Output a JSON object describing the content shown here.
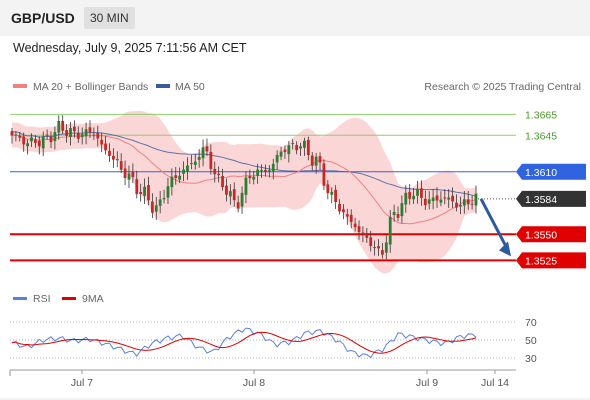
{
  "header": {
    "symbol": "GBP/USD",
    "timeframe": "30 MIN",
    "datetime": "Wednesday, July 9, 2025 7:11:56 AM CET"
  },
  "legend": {
    "ma20": "MA 20 + Bollinger Bands",
    "ma50": "MA 50",
    "rsi": "RSI",
    "ma9": "9MA"
  },
  "credit": "Research © 2025 Trading Central",
  "colors": {
    "ma20": "#f08080",
    "ma50": "#3a5a9c",
    "bands": "#f9c8c8",
    "support": "#e00000",
    "resistance_green": "#8fcf6a",
    "resistance_blue": "#2f63e0",
    "price_label": "#333333",
    "arrow": "#2c5aa0",
    "candle_up": "#2e7d32",
    "candle_down": "#c62828",
    "rsi": "#5b7fe0",
    "rsi_ma": "#e00000"
  },
  "chart_data": {
    "type": "candlestick",
    "ylim": [
      1.351,
      1.3675
    ],
    "x_labels": [
      "Jul 7",
      "Jul 8",
      "Jul 9",
      "Jul 14"
    ],
    "levels": [
      {
        "value": 1.3665,
        "label": "1.3665",
        "kind": "resistance"
      },
      {
        "value": 1.3645,
        "label": "1.3645",
        "kind": "resistance"
      },
      {
        "value": 1.361,
        "label": "1.3610",
        "kind": "pivot"
      },
      {
        "value": 1.3584,
        "label": "1.3584",
        "kind": "last"
      },
      {
        "value": 1.355,
        "label": "1.3550",
        "kind": "support"
      },
      {
        "value": 1.3525,
        "label": "1.3525",
        "kind": "support"
      }
    ],
    "anchors": [
      1.3645,
      1.3638,
      1.364,
      1.3652,
      1.3646,
      1.3648,
      1.3628,
      1.361,
      1.3592,
      1.3575,
      1.3602,
      1.3615,
      1.363,
      1.36,
      1.358,
      1.3608,
      1.3612,
      1.3632,
      1.3636,
      1.362,
      1.3585,
      1.3565,
      1.3548,
      1.3532,
      1.3572,
      1.359,
      1.3582,
      1.3585,
      1.3578,
      1.3584
    ],
    "rsi": {
      "levels": [
        70,
        50,
        30
      ],
      "values": [
        47,
        42,
        50,
        52,
        49,
        51,
        46,
        40,
        34,
        46,
        52,
        55,
        42,
        36,
        53,
        63,
        57,
        45,
        48,
        58,
        60,
        50,
        36,
        32,
        40,
        57,
        53,
        49,
        46,
        54,
        56
      ]
    }
  }
}
